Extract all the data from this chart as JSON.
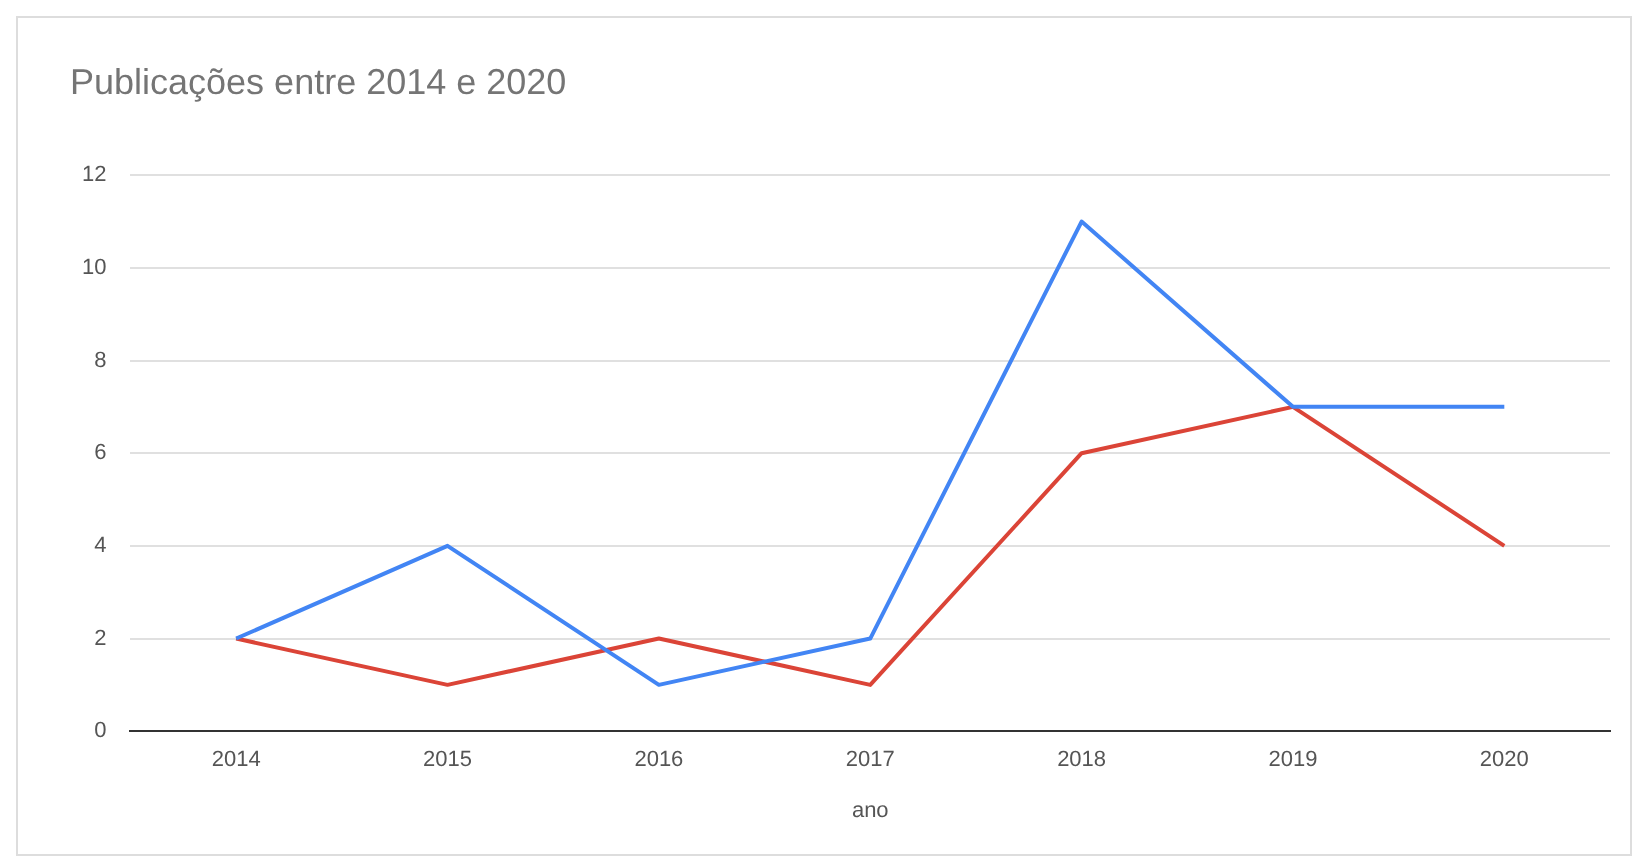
{
  "chart_data": {
    "type": "line",
    "title": "Publicações entre 2014 e 2020",
    "xlabel": "ano",
    "categories": [
      "2014",
      "2015",
      "2016",
      "2017",
      "2018",
      "2019",
      "2020"
    ],
    "series": [
      {
        "color": "#4285f4",
        "values": [
          2,
          4,
          1,
          2,
          11,
          7,
          7
        ]
      },
      {
        "color": "#db4437",
        "values": [
          2,
          1,
          2,
          1,
          6,
          7,
          4
        ]
      }
    ],
    "ylim": [
      0,
      12
    ],
    "yticks": [
      0,
      2,
      4,
      6,
      8,
      10,
      12
    ],
    "grid": "y",
    "legend": false,
    "marker": "none",
    "line_style": "solid"
  }
}
